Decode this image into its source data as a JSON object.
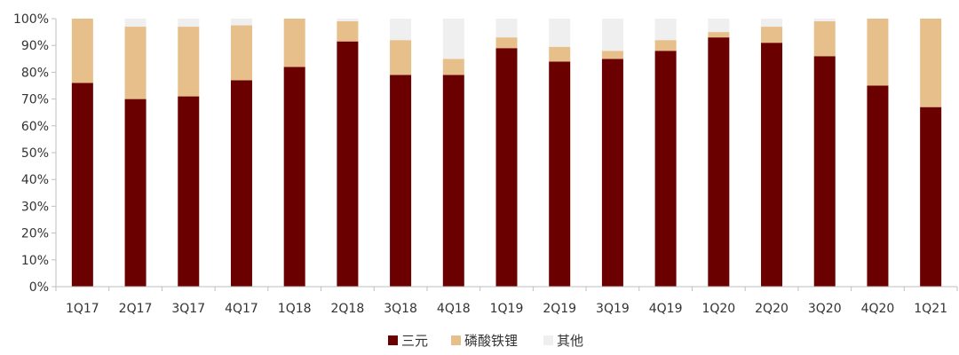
{
  "chart_data": {
    "type": "bar",
    "stacked": true,
    "categories": [
      "1Q17",
      "2Q17",
      "3Q17",
      "4Q17",
      "1Q18",
      "2Q18",
      "3Q18",
      "4Q18",
      "1Q19",
      "2Q19",
      "3Q19",
      "4Q19",
      "1Q20",
      "2Q20",
      "3Q20",
      "4Q20",
      "1Q21"
    ],
    "series": [
      {
        "name": "三元",
        "color": "#6b0000",
        "values": [
          76,
          70,
          71,
          77,
          82,
          91.5,
          79,
          79,
          89,
          84,
          85,
          88,
          93,
          91,
          86,
          75,
          67
        ]
      },
      {
        "name": "磷酸铁锂",
        "color": "#e6bf8a",
        "values": [
          24,
          27,
          26,
          20.5,
          18,
          7.5,
          13,
          6,
          4,
          5.5,
          3,
          4,
          2,
          6,
          13,
          25,
          33
        ]
      },
      {
        "name": "其他",
        "color": "#efefef",
        "values": [
          0,
          3,
          3,
          2.5,
          0,
          1,
          8,
          15,
          7,
          10.5,
          12,
          8,
          5,
          3,
          1,
          0,
          0
        ]
      }
    ],
    "ylim": [
      0,
      100
    ],
    "y_ticks": [
      "0%",
      "10%",
      "20%",
      "30%",
      "40%",
      "50%",
      "60%",
      "70%",
      "80%",
      "90%",
      "100%"
    ],
    "y_tick_values": [
      0,
      10,
      20,
      30,
      40,
      50,
      60,
      70,
      80,
      90,
      100
    ],
    "grid": false,
    "legend_position": "bottom-center"
  }
}
